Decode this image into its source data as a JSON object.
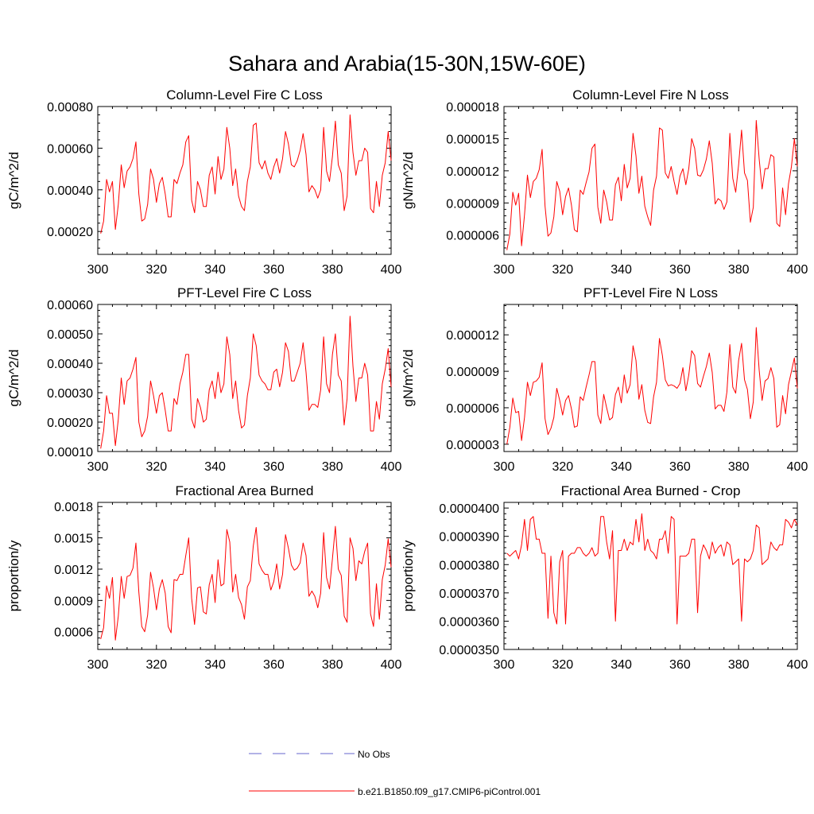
{
  "figure": {
    "title": "Sahara and Arabia(15-30N,15W-60E)",
    "legend": [
      {
        "label": "No Obs",
        "color": "#6666cc",
        "style": "dashed"
      },
      {
        "label": "b.e21.B1850.f09_g17.CMIP6-piControl.001",
        "color": "#ff0000",
        "style": "solid"
      }
    ]
  },
  "chart_data": [
    {
      "type": "line",
      "title": "Column-Level Fire C Loss",
      "ylabel": "gC/m^2/d",
      "xlabel": "",
      "xlim": [
        300,
        400
      ],
      "ylim": [
        9e-05,
        0.0008
      ],
      "xticks": [
        300,
        320,
        340,
        360,
        380,
        400
      ],
      "yticks": [
        0.0002,
        0.0004,
        0.0006,
        0.0008
      ],
      "ytick_labels": [
        "0.00020",
        "0.00040",
        "0.00060",
        "0.00080"
      ],
      "series": [
        {
          "name": "b.e21.B1850.f09_g17.CMIP6-piControl.001",
          "color": "#ff0000",
          "x_start": 301,
          "x_step": 1,
          "values": [
            0.00019,
            0.00025,
            0.00045,
            0.00039,
            0.00044,
            0.00021,
            0.00033,
            0.00052,
            0.00041,
            0.00049,
            0.00051,
            0.00055,
            0.00063,
            0.00038,
            0.00025,
            0.00026,
            0.00033,
            0.0005,
            0.00045,
            0.00034,
            0.00043,
            0.00046,
            0.00038,
            0.00027,
            0.00027,
            0.00045,
            0.00043,
            0.00048,
            0.00052,
            0.00063,
            0.00066,
            0.00035,
            0.00029,
            0.00044,
            0.0004,
            0.00032,
            0.00032,
            0.00047,
            0.00051,
            0.00038,
            0.00056,
            0.00045,
            0.0005,
            0.0007,
            0.0006,
            0.00042,
            0.0005,
            0.00037,
            0.00032,
            0.0003,
            0.00044,
            0.00051,
            0.00071,
            0.00072,
            0.00053,
            0.0005,
            0.00054,
            0.00048,
            0.00045,
            0.00051,
            0.00055,
            0.00048,
            0.00055,
            0.00068,
            0.00062,
            0.00052,
            0.00051,
            0.00054,
            0.00059,
            0.00067,
            0.00057,
            0.00039,
            0.00042,
            0.0004,
            0.00036,
            0.0004,
            0.0007,
            0.00049,
            0.00044,
            0.00056,
            0.00073,
            0.00052,
            0.00048,
            0.0003,
            0.00037,
            0.00076,
            0.00058,
            0.00047,
            0.00054,
            0.00054,
            0.0006,
            0.00058,
            0.00031,
            0.00029,
            0.00044,
            0.00032,
            0.00047,
            0.00053,
            0.00068,
            0.00054
          ]
        }
      ]
    },
    {
      "type": "line",
      "title": "Column-Level Fire N Loss",
      "ylabel": "gN/m^2/d",
      "xlabel": "",
      "xlim": [
        300,
        400
      ],
      "ylim": [
        4.2e-06,
        1.8e-05
      ],
      "xticks": [
        300,
        320,
        340,
        360,
        380,
        400
      ],
      "yticks": [
        6e-06,
        9e-06,
        1.2e-05,
        1.5e-05,
        1.8e-05
      ],
      "ytick_labels": [
        "0.000006",
        "0.000009",
        "0.000012",
        "0.000015",
        "0.000018"
      ],
      "series": [
        {
          "name": "b.e21.B1850.f09_g17.CMIP6-piControl.001",
          "color": "#ff0000",
          "x_start": 301,
          "x_step": 1,
          "values": [
            4.6e-06,
            6.1e-06,
            1e-05,
            8.8e-06,
            9.9e-06,
            5e-06,
            7.9e-06,
            1.16e-05,
            9.5e-06,
            1.1e-05,
            1.13e-05,
            1.21e-05,
            1.4e-05,
            8.7e-06,
            5.9e-06,
            6.2e-06,
            7.7e-06,
            1.1e-05,
            1.01e-05,
            7.9e-06,
            9.6e-06,
            1.04e-05,
            8.8e-06,
            6.5e-06,
            6.3e-06,
            1.02e-05,
            9.8e-06,
            1.09e-05,
            1.19e-05,
            1.41e-05,
            1.45e-05,
            8.6e-06,
            7.1e-06,
            1.02e-05,
            9.1e-06,
            7.4e-06,
            7.4e-06,
            1.07e-05,
            1.14e-05,
            9.2e-06,
            1.26e-05,
            1.04e-05,
            1.13e-05,
            1.55e-05,
            1.34e-05,
            9.9e-06,
            1.15e-05,
            8.7e-06,
            7.7e-06,
            6.9e-06,
            1.02e-05,
            1.15e-05,
            1.6e-05,
            1.58e-05,
            1.18e-05,
            1.13e-05,
            1.24e-05,
            1.1e-05,
            9.8e-06,
            1.15e-05,
            1.22e-05,
            1.07e-05,
            1.22e-05,
            1.5e-05,
            1.41e-05,
            1.16e-05,
            1.15e-05,
            1.21e-05,
            1.31e-05,
            1.48e-05,
            1.27e-05,
            8.9e-06,
            9.4e-06,
            9.2e-06,
            8.4e-06,
            9.1e-06,
            1.55e-05,
            1.13e-05,
            1e-05,
            1.26e-05,
            1.58e-05,
            1.18e-05,
            1.11e-05,
            7.2e-06,
            8.6e-06,
            1.67e-05,
            1.31e-05,
            1.03e-05,
            1.22e-05,
            1.22e-05,
            1.35e-05,
            1.33e-05,
            7.1e-06,
            6.8e-06,
            1.04e-05,
            7.9e-06,
            1.08e-05,
            1.24e-05,
            1.5e-05,
            1.24e-05
          ]
        }
      ]
    },
    {
      "type": "line",
      "title": "PFT-Level Fire C Loss",
      "ylabel": "gC/m^2/d",
      "xlabel": "",
      "xlim": [
        300,
        400
      ],
      "ylim": [
        0.0001,
        0.0006
      ],
      "xticks": [
        300,
        320,
        340,
        360,
        380,
        400
      ],
      "yticks": [
        0.0001,
        0.0002,
        0.0003,
        0.0004,
        0.0005,
        0.0006
      ],
      "ytick_labels": [
        "0.00010",
        "0.00020",
        "0.00030",
        "0.00040",
        "0.00050",
        "0.00060"
      ],
      "series": [
        {
          "name": "b.e21.B1850.f09_g17.CMIP6-piControl.001",
          "color": "#ff0000",
          "x_start": 301,
          "x_step": 1,
          "values": [
            0.00011,
            0.00017,
            0.00029,
            0.00023,
            0.00023,
            0.00012,
            0.00021,
            0.00035,
            0.00026,
            0.00034,
            0.00035,
            0.00038,
            0.00042,
            0.0002,
            0.00015,
            0.00017,
            0.00022,
            0.00034,
            0.00029,
            0.00023,
            0.00029,
            0.0003,
            0.00024,
            0.00017,
            0.00017,
            0.00028,
            0.00026,
            0.00033,
            0.00037,
            0.00043,
            0.00043,
            0.00021,
            0.00018,
            0.00028,
            0.00025,
            0.0002,
            0.00021,
            0.00031,
            0.00034,
            0.00028,
            0.00037,
            0.0003,
            0.00033,
            0.00049,
            0.00043,
            0.00028,
            0.00034,
            0.00024,
            0.00018,
            0.00019,
            0.00029,
            0.00035,
            0.0005,
            0.00046,
            0.00036,
            0.00034,
            0.00033,
            0.00031,
            0.00031,
            0.00037,
            0.00038,
            0.00032,
            0.00037,
            0.00047,
            0.00044,
            0.00034,
            0.00034,
            0.00037,
            0.0004,
            0.00047,
            0.00037,
            0.00024,
            0.00026,
            0.00026,
            0.00025,
            0.00031,
            0.00049,
            0.00033,
            0.0003,
            0.00043,
            0.0005,
            0.00036,
            0.00034,
            0.00019,
            0.00028,
            0.00056,
            0.00039,
            0.00027,
            0.00035,
            0.00035,
            0.0004,
            0.00036,
            0.00017,
            0.00017,
            0.00027,
            0.00021,
            0.00033,
            0.00038,
            0.00045,
            0.00032
          ]
        }
      ]
    },
    {
      "type": "line",
      "title": "PFT-Level Fire N Loss",
      "ylabel": "gN/m^2/d",
      "xlabel": "",
      "xlim": [
        300,
        400
      ],
      "ylim": [
        2.4e-06,
        1.45e-05
      ],
      "xticks": [
        300,
        320,
        340,
        360,
        380,
        400
      ],
      "yticks": [
        3e-06,
        6e-06,
        9e-06,
        1.2e-05
      ],
      "ytick_labels": [
        "0.000003",
        "0.000006",
        "0.000009",
        "0.000012"
      ],
      "series": [
        {
          "name": "b.e21.B1850.f09_g17.CMIP6-piControl.001",
          "color": "#ff0000",
          "x_start": 301,
          "x_step": 1,
          "values": [
            3e-06,
            4.4e-06,
            6.8e-06,
            5.6e-06,
            5.7e-06,
            3.3e-06,
            5.2e-06,
            8.1e-06,
            7e-06,
            8.1e-06,
            8.2e-06,
            8.5e-06,
            9.7e-06,
            5.1e-06,
            3.8e-06,
            4.3e-06,
            5.2e-06,
            7.6e-06,
            6.6e-06,
            5.4e-06,
            6.6e-06,
            7e-06,
            5.9e-06,
            4.4e-06,
            4.5e-06,
            6.9e-06,
            6.6e-06,
            7.7e-06,
            8.7e-06,
            9.8e-06,
            9.8e-06,
            5.4e-06,
            4.7e-06,
            7.1e-06,
            6e-06,
            5e-06,
            5.2e-06,
            7.1e-06,
            7.7e-06,
            6.4e-06,
            8.7e-06,
            7.2e-06,
            7.9e-06,
            1.11e-05,
            9.9e-06,
            6.7e-06,
            7.9e-06,
            5.8e-06,
            4.8e-06,
            4.7e-06,
            6.9e-06,
            8.1e-06,
            1.17e-05,
            1.03e-05,
            8.3e-06,
            7.8e-06,
            7.9e-06,
            7.8e-06,
            7.6e-06,
            8e-06,
            9.3e-06,
            7.4e-06,
            8.7e-06,
            1.07e-05,
            1.03e-05,
            8e-06,
            7.7e-06,
            8.6e-06,
            9.4e-06,
            1.05e-05,
            8.9e-06,
            5.9e-06,
            6.2e-06,
            6.2e-06,
            5.7e-06,
            7.3e-06,
            1.12e-05,
            7.7e-06,
            7.2e-06,
            9.9e-06,
            1.13e-05,
            8.3e-06,
            7.5e-06,
            5.1e-06,
            6.5e-06,
            1.26e-05,
            9.1e-06,
            6.6e-06,
            8.2e-06,
            8.4e-06,
            9.3e-06,
            8.4e-06,
            4.4e-06,
            4.6e-06,
            7e-06,
            5.5e-06,
            7.9e-06,
            9e-06,
            1.01e-05,
            7.6e-06
          ]
        }
      ]
    },
    {
      "type": "line",
      "title": "Fractional Area Burned",
      "ylabel": "proportion/y",
      "xlabel": "",
      "xlim": [
        300,
        400
      ],
      "ylim": [
        0.00043,
        0.00184
      ],
      "xticks": [
        300,
        320,
        340,
        360,
        380,
        400
      ],
      "yticks": [
        0.0006,
        0.0009,
        0.0012,
        0.0015,
        0.0018
      ],
      "ytick_labels": [
        "0.0006",
        "0.0009",
        "0.0012",
        "0.0015",
        "0.0018"
      ],
      "series": [
        {
          "name": "b.e21.B1850.f09_g17.CMIP6-piControl.001",
          "color": "#ff0000",
          "x_start": 301,
          "x_step": 1,
          "values": [
            0.00053,
            0.00064,
            0.00104,
            0.00092,
            0.00112,
            0.00052,
            0.00075,
            0.00113,
            0.00092,
            0.00113,
            0.00114,
            0.00121,
            0.00145,
            0.00098,
            0.00065,
            0.0006,
            0.00076,
            0.00117,
            0.00102,
            0.00081,
            0.00101,
            0.0011,
            0.00097,
            0.00065,
            0.00059,
            0.0011,
            0.00109,
            0.00115,
            0.00115,
            0.00133,
            0.0015,
            0.00092,
            0.00067,
            0.00102,
            0.00103,
            0.00079,
            0.00077,
            0.00105,
            0.00115,
            0.00088,
            0.00129,
            0.00104,
            0.00106,
            0.00158,
            0.00146,
            0.00098,
            0.00115,
            0.00093,
            0.00086,
            0.00072,
            0.00103,
            0.00109,
            0.00142,
            0.0016,
            0.00125,
            0.00119,
            0.00115,
            0.00115,
            0.001,
            0.00108,
            0.00125,
            0.00101,
            0.00115,
            0.00153,
            0.0014,
            0.00124,
            0.00119,
            0.00121,
            0.00126,
            0.00145,
            0.00133,
            0.00094,
            0.00099,
            0.00094,
            0.00083,
            0.00097,
            0.00155,
            0.00112,
            0.00101,
            0.0013,
            0.00161,
            0.0012,
            0.00114,
            0.00075,
            0.00069,
            0.0015,
            0.0014,
            0.00109,
            0.00128,
            0.00125,
            0.00137,
            0.00145,
            0.00077,
            0.00065,
            0.00106,
            0.00072,
            0.0011,
            0.00124,
            0.00149,
            0.00122
          ]
        }
      ]
    },
    {
      "type": "line",
      "title": "Fractional Area Burned - Crop",
      "ylabel": "proportion/y",
      "xlabel": "",
      "xlim": [
        300,
        400
      ],
      "ylim": [
        3.5e-05,
        4.02e-05
      ],
      "xticks": [
        300,
        320,
        340,
        360,
        380,
        400
      ],
      "yticks": [
        3.5e-05,
        3.6e-05,
        3.7e-05,
        3.8e-05,
        3.9e-05,
        4e-05
      ],
      "ytick_labels": [
        "0.0000350",
        "0.0000360",
        "0.0000370",
        "0.0000380",
        "0.0000390",
        "0.0000400"
      ],
      "series": [
        {
          "name": "b.e21.B1850.f09_g17.CMIP6-piControl.001",
          "color": "#ff0000",
          "x_start": 301,
          "x_step": 1,
          "values": [
            3.84e-05,
            3.83e-05,
            3.84e-05,
            3.85e-05,
            3.82e-05,
            3.87e-05,
            3.96e-05,
            3.85e-05,
            3.96e-05,
            3.97e-05,
            3.89e-05,
            3.89e-05,
            3.84e-05,
            3.84e-05,
            3.61e-05,
            3.83e-05,
            3.63e-05,
            3.59e-05,
            3.81e-05,
            3.85e-05,
            3.59e-05,
            3.83e-05,
            3.84e-05,
            3.84e-05,
            3.86e-05,
            3.86e-05,
            3.84e-05,
            3.83e-05,
            3.84e-05,
            3.86e-05,
            3.83e-05,
            3.84e-05,
            3.97e-05,
            3.97e-05,
            3.88e-05,
            3.82e-05,
            3.92e-05,
            3.6e-05,
            3.85e-05,
            3.85e-05,
            3.89e-05,
            3.85e-05,
            3.88e-05,
            3.87e-05,
            3.96e-05,
            3.88e-05,
            3.98e-05,
            3.85e-05,
            3.89e-05,
            3.85e-05,
            3.84e-05,
            3.82e-05,
            3.89e-05,
            3.89e-05,
            3.92e-05,
            3.84e-05,
            3.97e-05,
            3.96e-05,
            3.59e-05,
            3.83e-05,
            3.83e-05,
            3.83e-05,
            3.84e-05,
            3.89e-05,
            3.89e-05,
            3.63e-05,
            3.83e-05,
            3.87e-05,
            3.85e-05,
            3.82e-05,
            3.88e-05,
            3.84e-05,
            3.86e-05,
            3.87e-05,
            3.83e-05,
            3.88e-05,
            3.87e-05,
            3.8e-05,
            3.81e-05,
            3.82e-05,
            3.6e-05,
            3.82e-05,
            3.81e-05,
            3.82e-05,
            3.85e-05,
            3.94e-05,
            3.93e-05,
            3.8e-05,
            3.81e-05,
            3.82e-05,
            3.88e-05,
            3.86e-05,
            3.85e-05,
            3.87e-05,
            3.87e-05,
            3.96e-05,
            3.95e-05,
            3.93e-05,
            3.96e-05,
            3.94e-05
          ]
        }
      ]
    }
  ]
}
